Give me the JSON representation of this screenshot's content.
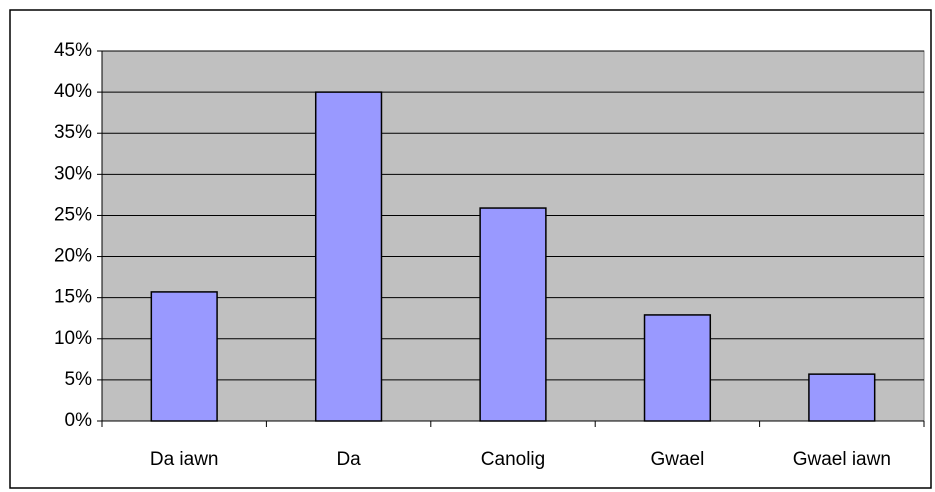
{
  "chart_data": {
    "type": "bar",
    "categories": [
      "Da iawn",
      "Da",
      "Canolig",
      "Gwael",
      "Gwael iawn"
    ],
    "values": [
      15.7,
      40,
      25.9,
      12.9,
      5.7
    ],
    "color": "#9999ff",
    "ylim": [
      0,
      45
    ],
    "yticks": [
      {
        "value": 0,
        "label": "0%"
      },
      {
        "value": 5,
        "label": "5%"
      },
      {
        "value": 10,
        "label": "10%"
      },
      {
        "value": 15,
        "label": "15%"
      },
      {
        "value": 20,
        "label": "20%"
      },
      {
        "value": 25,
        "label": "25%"
      },
      {
        "value": 30,
        "label": "30%"
      },
      {
        "value": 35,
        "label": "35%"
      },
      {
        "value": 40,
        "label": "40%"
      },
      {
        "value": 45,
        "label": "45%"
      }
    ],
    "grid": true
  }
}
